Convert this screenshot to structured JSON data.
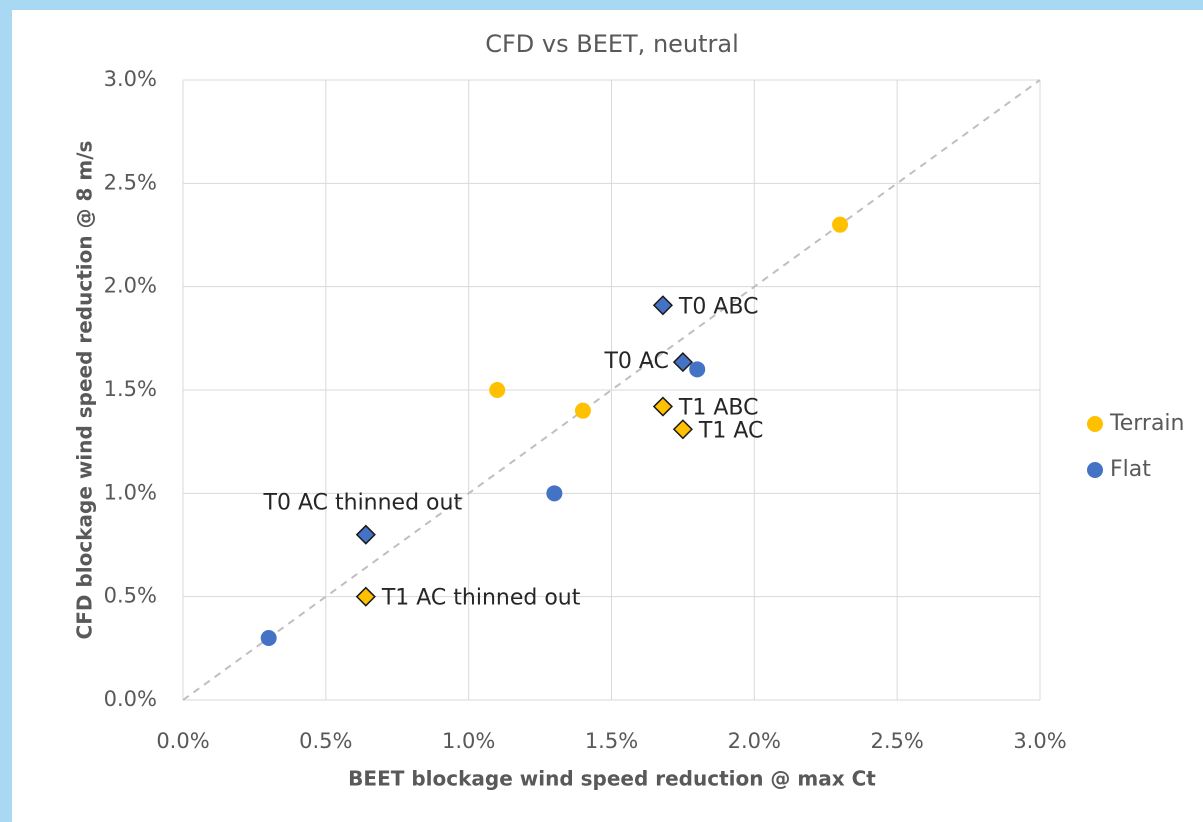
{
  "chart_data": {
    "type": "scatter",
    "title": "CFD vs BEET, neutral",
    "xlabel": "BEET blockage wind speed reduction @ max Ct",
    "ylabel": "CFD blockage wind speed reduction @ 8 m/s",
    "xlim": [
      0,
      3
    ],
    "ylim": [
      0,
      3
    ],
    "xticks": [
      {
        "value": 0,
        "label": "0.0%"
      },
      {
        "value": 0.5,
        "label": "0.5%"
      },
      {
        "value": 1,
        "label": "1.0%"
      },
      {
        "value": 1.5,
        "label": "1.5%"
      },
      {
        "value": 2,
        "label": "2.0%"
      },
      {
        "value": 2.5,
        "label": "2.5%"
      },
      {
        "value": 3,
        "label": "3.0%"
      }
    ],
    "yticks": [
      {
        "value": 0,
        "label": "0.0%"
      },
      {
        "value": 0.5,
        "label": "0.5%"
      },
      {
        "value": 1,
        "label": "1.0%"
      },
      {
        "value": 1.5,
        "label": "1.5%"
      },
      {
        "value": 2,
        "label": "2.0%"
      },
      {
        "value": 2.5,
        "label": "2.5%"
      },
      {
        "value": 3,
        "label": "3.0%"
      }
    ],
    "grid": true,
    "legend": "right",
    "reference_line": "diagonal",
    "series": [
      {
        "name": "Terrain",
        "color": "#ffc000",
        "x": [
          1.1,
          1.4,
          2.3
        ],
        "values": [
          1.5,
          1.4,
          2.3
        ]
      },
      {
        "name": "Flat",
        "color": "#4472c4",
        "x": [
          0.3,
          1.3,
          1.8
        ],
        "values": [
          0.3,
          1.0,
          1.6
        ]
      }
    ],
    "labeled_points": [
      {
        "label": "T0 ABC",
        "color": "#4472c4",
        "x": 1.68,
        "y": 1.91,
        "label_position": "right"
      },
      {
        "label": "T0 AC",
        "color": "#4472c4",
        "x": 1.75,
        "y": 1.635,
        "label_position": "left"
      },
      {
        "label": "T0 AC thinned out",
        "color": "#4472c4",
        "x": 0.64,
        "y": 0.8,
        "label_position": "above"
      },
      {
        "label": "T1 ABC",
        "color": "#ffc000",
        "x": 1.68,
        "y": 1.42,
        "label_position": "right"
      },
      {
        "label": "T1 AC",
        "color": "#ffc000",
        "x": 1.75,
        "y": 1.31,
        "label_position": "right"
      },
      {
        "label": "T1 AC thinned out",
        "color": "#ffc000",
        "x": 0.64,
        "y": 0.5,
        "label_position": "right"
      }
    ]
  }
}
